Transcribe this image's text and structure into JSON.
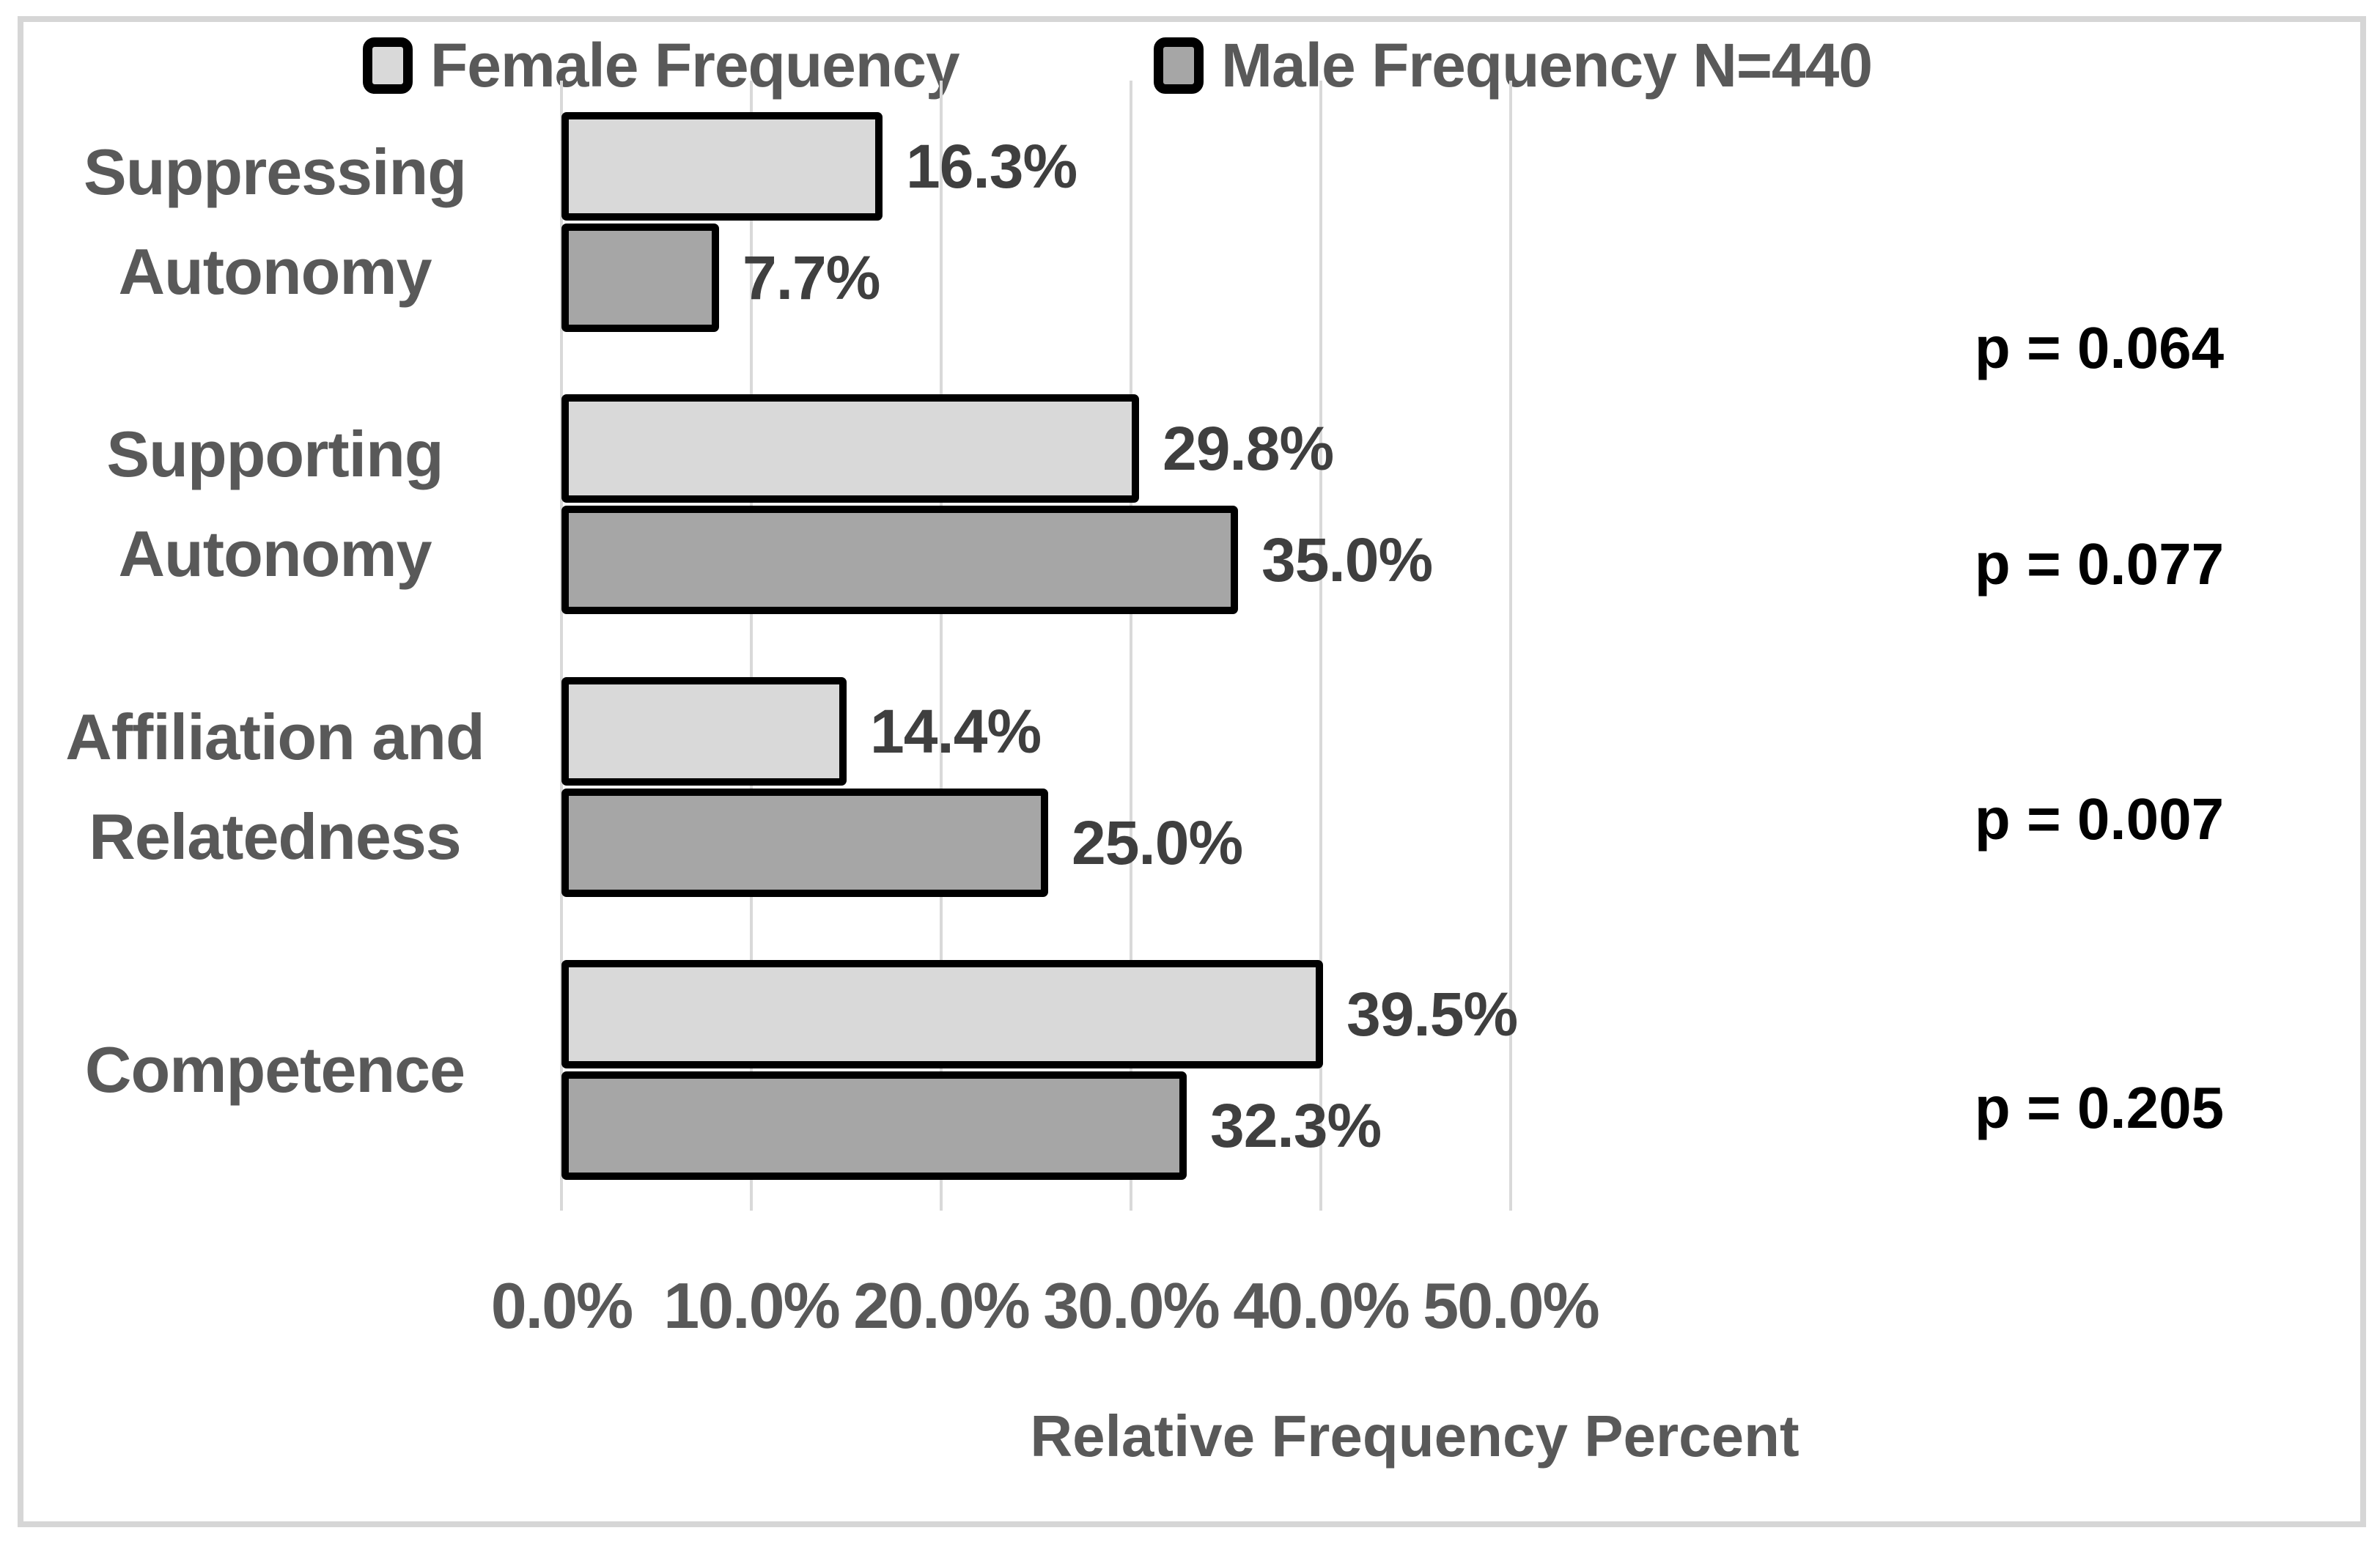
{
  "chart_data": {
    "type": "bar",
    "orientation": "horizontal",
    "title": "",
    "categories": [
      {
        "label": "Suppressing Autonomy",
        "lines": [
          "Suppressing",
          "Autonomy"
        ]
      },
      {
        "label": "Supporting Autonomy",
        "lines": [
          "Supporting",
          "Autonomy"
        ]
      },
      {
        "label": "Affiliation and Relatedness",
        "lines": [
          "Affiliation and",
          "Relatedness"
        ]
      },
      {
        "label": "Competence",
        "lines": [
          "Competence"
        ]
      }
    ],
    "series": [
      {
        "name": "Female Frequency",
        "color": "#d9d9d9",
        "values": [
          16.3,
          29.8,
          14.4,
          39.5
        ],
        "data_labels": [
          "16.3%",
          "29.8%",
          "14.4%",
          "39.5%"
        ]
      },
      {
        "name": "Male Frequency N=440",
        "color": "#a6a6a6",
        "values": [
          7.7,
          35.0,
          25.0,
          32.3
        ],
        "data_labels": [
          "7.7%",
          "35.0%",
          "25.0%",
          "32.3%"
        ]
      }
    ],
    "p_values": [
      "p = 0.064",
      "p = 0.077",
      "p = 0.007",
      "p = 0.205"
    ],
    "x_axis": {
      "title": "Relative Frequency Percent",
      "tick_labels": [
        "0.0%",
        "10.0%",
        "20.0%",
        "30.0%",
        "40.0%",
        "50.0%"
      ],
      "range_percent": [
        0,
        50
      ],
      "grid": true
    },
    "legend": [
      {
        "label": "Female Frequency",
        "color": "#d9d9d9"
      },
      {
        "label": "Male Frequency N=440",
        "color": "#a6a6a6"
      }
    ],
    "colors": {
      "female_fill": "#d9d9d9",
      "male_fill": "#a6a6a6",
      "bar_border": "#000000",
      "gridline": "#d9d9d9",
      "category_text": "#595959",
      "value_text": "#3f3f3f",
      "p_text": "#000000",
      "figure_border": "#d6d6d6",
      "background": "#ffffff"
    }
  }
}
